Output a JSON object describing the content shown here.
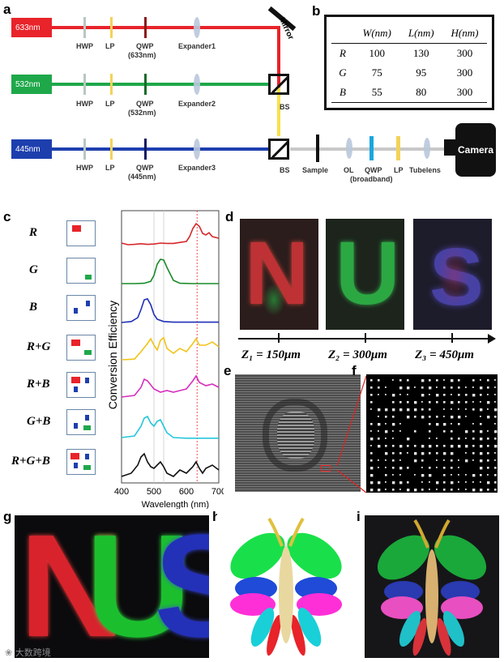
{
  "panel_labels": {
    "a": "a",
    "b": "b",
    "c": "c",
    "d": "d",
    "e": "e",
    "f": "f",
    "g": "g",
    "h": "h",
    "i": "i"
  },
  "setup": {
    "lasers": [
      "633nm",
      "532nm",
      "445nm"
    ],
    "hwp": "HWP",
    "lp": "LP",
    "qwp": "QWP",
    "qwp_wavelengths": [
      "(633nm)",
      "(532nm)",
      "(445nm)"
    ],
    "expanders": [
      "Expander1",
      "Expander2",
      "Expander3"
    ],
    "mirror": "Mirror",
    "bs": "BS",
    "sample": "Sample",
    "ol": "OL",
    "qwp_broadband": "(broadband)",
    "tubelens": "Tubelens",
    "camera": "Camera",
    "colors": {
      "red": "#e8232a",
      "green": "#1fa84a",
      "blue": "#1d3fae",
      "yellow": "#f6e24a",
      "gray": "#c8c8c8"
    }
  },
  "table": {
    "headers": [
      "W(nm)",
      "L(nm)",
      "H(nm)"
    ],
    "rows": [
      {
        "label": "R",
        "values": [
          "100",
          "130",
          "300"
        ]
      },
      {
        "label": "G",
        "values": [
          "75",
          "95",
          "300"
        ]
      },
      {
        "label": "B",
        "values": [
          "55",
          "80",
          "300"
        ]
      }
    ]
  },
  "panel_c": {
    "rows": [
      "R",
      "G",
      "B",
      "R+G",
      "R+B",
      "G+B",
      "R+G+B"
    ]
  },
  "chart_data": {
    "type": "line",
    "xlabel": "Wavelength (nm)",
    "ylabel": "Conversion Efficiency",
    "xlim": [
      400,
      700
    ],
    "xticks": [
      "400",
      "500",
      "600",
      "700"
    ],
    "series": [
      {
        "color": "#d62728",
        "x": [
          400,
          420,
          440,
          460,
          480,
          500,
          520,
          540,
          560,
          580,
          600,
          610,
          620,
          630,
          640,
          650,
          660,
          670,
          680,
          700
        ],
        "y": [
          0.1,
          0.05,
          0.06,
          0.08,
          0.06,
          0.07,
          0.1,
          0.09,
          0.09,
          0.12,
          0.15,
          0.3,
          0.55,
          0.7,
          0.62,
          0.4,
          0.35,
          0.42,
          0.3,
          0.25
        ]
      },
      {
        "color": "#1a8a2a",
        "x": [
          400,
          440,
          470,
          490,
          500,
          510,
          520,
          530,
          540,
          560,
          580,
          620,
          660,
          700
        ],
        "y": [
          0.05,
          0.05,
          0.06,
          0.12,
          0.3,
          0.65,
          0.8,
          0.78,
          0.55,
          0.15,
          0.06,
          0.05,
          0.05,
          0.05
        ]
      },
      {
        "color": "#1f2fb8",
        "x": [
          400,
          430,
          450,
          460,
          470,
          480,
          490,
          500,
          510,
          530,
          560,
          600,
          650,
          700
        ],
        "y": [
          0.05,
          0.08,
          0.2,
          0.45,
          0.75,
          0.78,
          0.6,
          0.3,
          0.15,
          0.08,
          0.06,
          0.06,
          0.06,
          0.06
        ]
      },
      {
        "color": "#f0c419",
        "x": [
          400,
          440,
          460,
          480,
          490,
          500,
          510,
          520,
          530,
          540,
          560,
          580,
          600,
          620,
          630,
          640,
          660,
          680,
          700
        ],
        "y": [
          0.1,
          0.12,
          0.35,
          0.6,
          0.75,
          0.55,
          0.4,
          0.7,
          0.78,
          0.45,
          0.3,
          0.45,
          0.35,
          0.6,
          0.75,
          0.55,
          0.55,
          0.65,
          0.5
        ]
      },
      {
        "color": "#d62fbf",
        "x": [
          400,
          440,
          460,
          470,
          480,
          500,
          520,
          540,
          560,
          580,
          600,
          620,
          630,
          640,
          660,
          680,
          700
        ],
        "y": [
          0.15,
          0.2,
          0.45,
          0.7,
          0.65,
          0.4,
          0.3,
          0.35,
          0.3,
          0.35,
          0.4,
          0.65,
          0.8,
          0.6,
          0.5,
          0.55,
          0.45
        ]
      },
      {
        "color": "#26c6da",
        "x": [
          400,
          440,
          460,
          470,
          480,
          490,
          500,
          510,
          520,
          530,
          540,
          560,
          600,
          640,
          680,
          700
        ],
        "y": [
          0.1,
          0.15,
          0.45,
          0.7,
          0.75,
          0.55,
          0.45,
          0.6,
          0.65,
          0.45,
          0.25,
          0.1,
          0.08,
          0.08,
          0.08,
          0.08
        ]
      },
      {
        "color": "#111111",
        "x": [
          400,
          430,
          450,
          460,
          470,
          480,
          490,
          500,
          520,
          530,
          540,
          560,
          580,
          600,
          620,
          630,
          640,
          650,
          660,
          680,
          700
        ],
        "y": [
          0.1,
          0.2,
          0.45,
          0.7,
          0.8,
          0.55,
          0.4,
          0.35,
          0.55,
          0.4,
          0.2,
          0.1,
          0.3,
          0.2,
          0.4,
          0.55,
          0.35,
          0.2,
          0.35,
          0.45,
          0.3
        ]
      }
    ]
  },
  "panel_d": {
    "images": [
      "N",
      "U",
      "S"
    ],
    "axis_labels": [
      "Z₁ = 150μm",
      "Z₂ = 300μm",
      "Z₃ = 450μm"
    ]
  },
  "panel_g": {
    "letters": [
      "N",
      "U",
      "S"
    ]
  },
  "watermark": "大数跨境"
}
